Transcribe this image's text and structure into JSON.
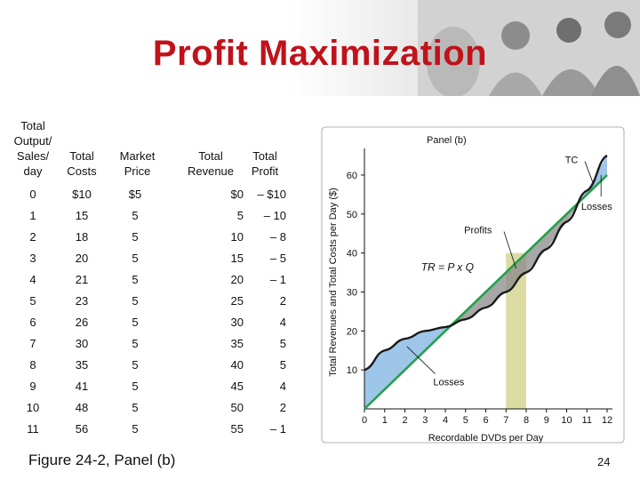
{
  "slide": {
    "title": "Profit Maximization",
    "caption": "Figure 24-2, Panel (b)",
    "page_number": "24"
  },
  "table": {
    "headers": [
      "Total\nOutput/\nSales/\nday",
      "Total\nCosts",
      "Market\nPrice",
      "Total\nRevenue",
      "Total\nProfit"
    ],
    "rows": [
      [
        "0",
        "$10",
        "$5",
        "$0",
        "– $10"
      ],
      [
        "1",
        "15",
        "5",
        "5",
        "– 10"
      ],
      [
        "2",
        "18",
        "5",
        "10",
        "– 8"
      ],
      [
        "3",
        "20",
        "5",
        "15",
        "– 5"
      ],
      [
        "4",
        "21",
        "5",
        "20",
        "– 1"
      ],
      [
        "5",
        "23",
        "5",
        "25",
        "2"
      ],
      [
        "6",
        "26",
        "5",
        "30",
        "4"
      ],
      [
        "7",
        "30",
        "5",
        "35",
        "5"
      ],
      [
        "8",
        "35",
        "5",
        "40",
        "5"
      ],
      [
        "9",
        "41",
        "5",
        "45",
        "4"
      ],
      [
        "10",
        "48",
        "5",
        "50",
        "2"
      ],
      [
        "11",
        "56",
        "5",
        "55",
        "– 1"
      ]
    ]
  },
  "chart_data": {
    "type": "line",
    "panel_label": "Panel (b)",
    "xlabel": "Recordable DVDs per Day",
    "ylabel": "Total Revenues and Total Costs per Day ($)",
    "xlim": [
      0,
      12
    ],
    "ylim": [
      0,
      65
    ],
    "x_ticks": [
      "0",
      "1",
      "2",
      "3",
      "4",
      "5",
      "6",
      "7",
      "8",
      "9",
      "10",
      "11",
      "12"
    ],
    "y_ticks": [
      "10",
      "20",
      "30",
      "40",
      "50",
      "60"
    ],
    "grid": false,
    "series": [
      {
        "name": "TC",
        "x": [
          0,
          1,
          2,
          3,
          4,
          5,
          6,
          7,
          8,
          9,
          10,
          11,
          12
        ],
        "y": [
          10,
          15,
          18,
          20,
          21,
          23,
          26,
          30,
          35,
          41,
          48,
          56,
          65
        ],
        "color": "#1a1a1a"
      },
      {
        "name": "TR = P x Q",
        "x": [
          0,
          12
        ],
        "y": [
          0,
          60
        ],
        "color": "#22a04b"
      }
    ],
    "annotations": [
      {
        "text": "TC",
        "x": 10.8,
        "y": 64
      },
      {
        "text": "Losses",
        "x": 11.6,
        "y": 52
      },
      {
        "text": "Profits",
        "x": 6.6,
        "y": 46
      },
      {
        "text": "Losses",
        "x": 3.4,
        "y": 7
      }
    ],
    "highlight_band": {
      "x": [
        7,
        8
      ],
      "color": "#d8d79a"
    },
    "colors": {
      "loss_fill": "#9ec6e8",
      "profit_fill": "#8a8a8a"
    }
  }
}
